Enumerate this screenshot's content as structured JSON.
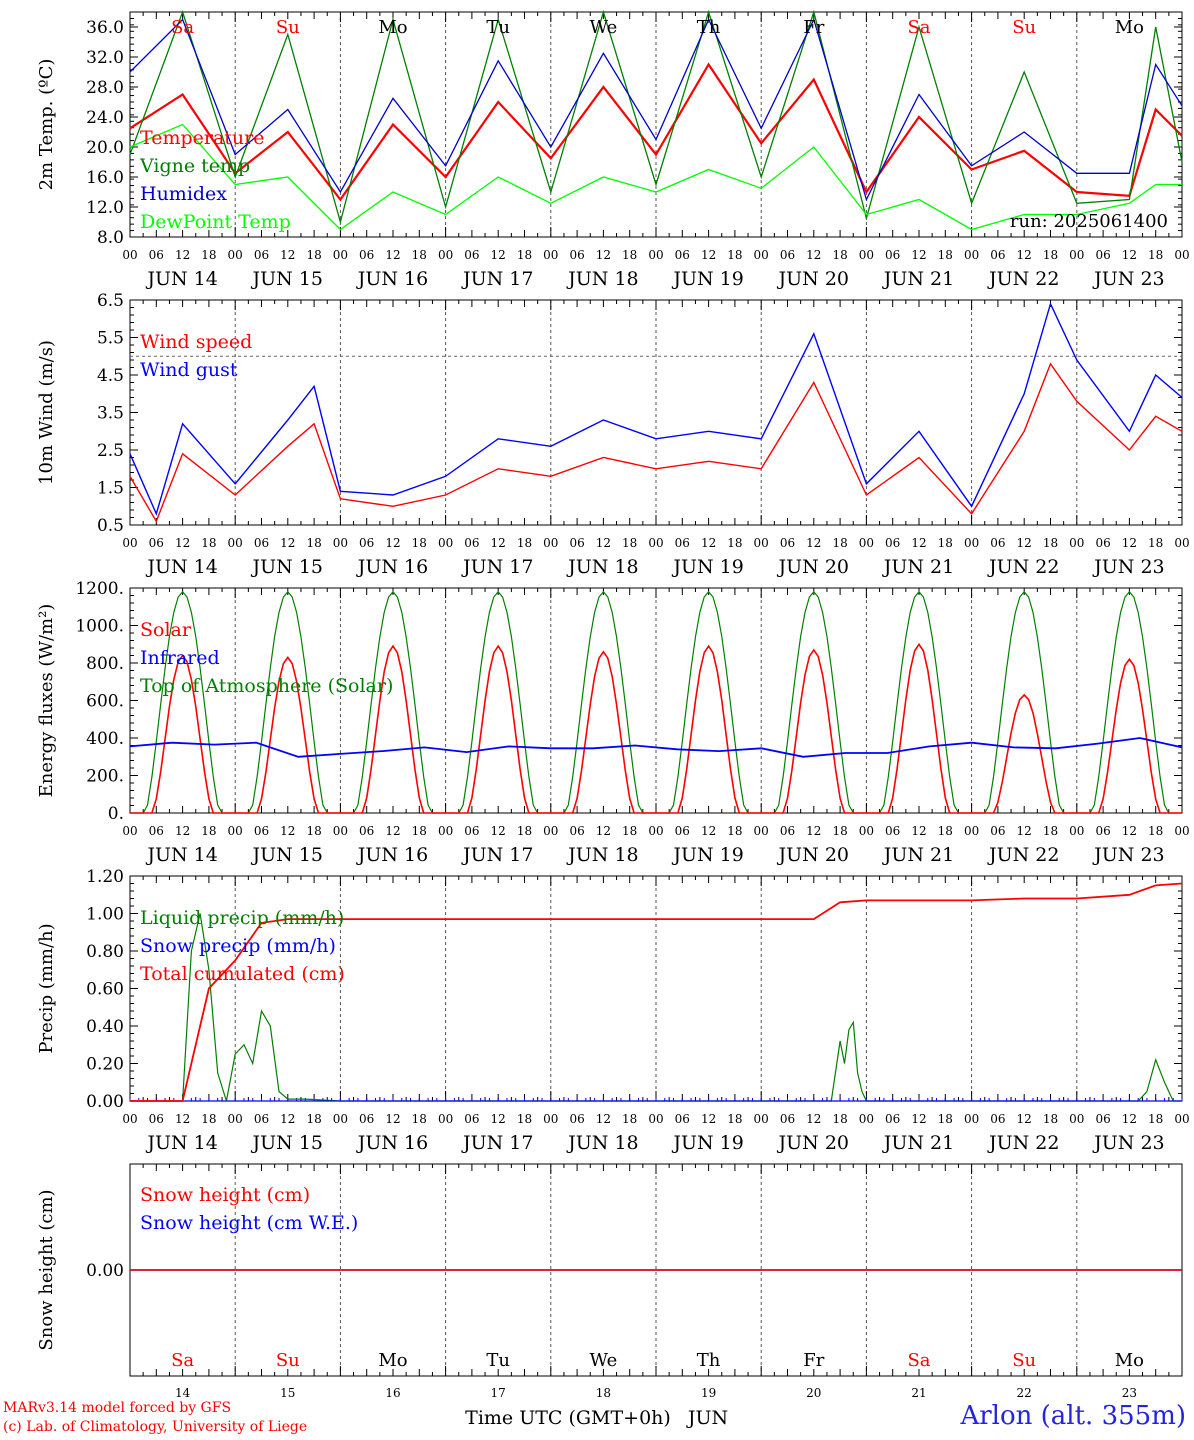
{
  "run_label": "run: 2025061400",
  "credits": [
    "MARv3.14 model forced by GFS",
    "(c) Lab. of Climatology, University of Liege"
  ],
  "location": "Arlon (alt. 355m)",
  "xlabel": "Time UTC (GMT+0h)",
  "month_label": "JUN",
  "day_labels": [
    "JUN 14",
    "JUN 15",
    "JUN 16",
    "JUN 17",
    "JUN 18",
    "JUN 19",
    "JUN 20",
    "JUN 21",
    "JUN 22",
    "JUN 23"
  ],
  "day_numbers": [
    "14",
    "15",
    "16",
    "17",
    "18",
    "19",
    "20",
    "21",
    "22",
    "23"
  ],
  "weekdays": [
    "Sa",
    "Su",
    "Mo",
    "Tu",
    "We",
    "Th",
    "Fr",
    "Sa",
    "Su",
    "Mo"
  ],
  "weekday_colors": [
    "#ff0000",
    "#ff0000",
    "#000000",
    "#000000",
    "#000000",
    "#000000",
    "#000000",
    "#ff0000",
    "#ff0000",
    "#000000"
  ],
  "hour_ticks": [
    "00",
    "06",
    "12",
    "18"
  ],
  "last_hour_tick": "00",
  "chart_data": [
    {
      "type": "line",
      "ylabel": "2m Temp. (ºC)",
      "ylim": [
        8,
        38
      ],
      "ytick_labels": [
        "8.0",
        "12.0",
        "16.0",
        "20.0",
        "24.0",
        "28.0",
        "32.0",
        "36.0"
      ],
      "x": [
        0,
        12,
        24,
        36,
        48,
        60,
        72,
        84,
        96,
        108,
        120,
        132,
        144,
        156,
        168,
        180,
        192,
        204,
        216,
        228,
        234,
        240
      ],
      "series": [
        {
          "name": "Temperature",
          "color": "#ff0000",
          "values": [
            22.5,
            27,
            16.5,
            22,
            13,
            23,
            16,
            26,
            18.5,
            28,
            19,
            31,
            20.5,
            29,
            14,
            24,
            17,
            19.5,
            14,
            13.5,
            25,
            21.5
          ]
        },
        {
          "name": "Vigne temp",
          "color": "#008000",
          "values": [
            19,
            38,
            16,
            35,
            10,
            37,
            12,
            37,
            14,
            38,
            15,
            38,
            16,
            38,
            10.5,
            36,
            12.5,
            30,
            12.5,
            13,
            36,
            18
          ]
        },
        {
          "name": "Humidex",
          "color": "#0000cc",
          "values": [
            30,
            37,
            19,
            25,
            14,
            26.5,
            17.5,
            31.5,
            20,
            32.5,
            21,
            37,
            22.5,
            37,
            13,
            27,
            17.5,
            22,
            16.5,
            16.5,
            31,
            25.5
          ]
        },
        {
          "name": "DewPoint Temp",
          "color": "#00ff00",
          "values": [
            20,
            23,
            15,
            16,
            9,
            14,
            11,
            16,
            12.5,
            16,
            14,
            17,
            14.5,
            20,
            11,
            13,
            9,
            11,
            11,
            12.5,
            15,
            15
          ]
        }
      ]
    },
    {
      "type": "line",
      "ylabel": "10m Wind (m/s)",
      "ylim": [
        0.5,
        6.5
      ],
      "ytick_labels": [
        "0.5",
        "1.5",
        "2.5",
        "3.5",
        "4.5",
        "5.5",
        "6.5"
      ],
      "reference_line": 5,
      "x": [
        0,
        6,
        12,
        24,
        36,
        42,
        48,
        60,
        72,
        84,
        96,
        108,
        120,
        132,
        144,
        156,
        168,
        180,
        192,
        204,
        210,
        216,
        228,
        234,
        240
      ],
      "series": [
        {
          "name": "Wind speed",
          "color": "#ff0000",
          "values": [
            1.8,
            0.6,
            2.4,
            1.3,
            2.6,
            3.2,
            1.2,
            1.0,
            1.3,
            2.0,
            1.8,
            2.3,
            2.0,
            2.2,
            2.0,
            4.3,
            1.3,
            2.3,
            0.8,
            3.0,
            4.8,
            3.8,
            2.5,
            3.4,
            3.0
          ]
        },
        {
          "name": "Wind gust",
          "color": "#0000ff",
          "values": [
            2.4,
            0.8,
            3.2,
            1.6,
            3.3,
            4.2,
            1.4,
            1.3,
            1.8,
            2.8,
            2.6,
            3.3,
            2.8,
            3.0,
            2.8,
            5.6,
            1.6,
            3.0,
            1.0,
            4.0,
            6.4,
            4.9,
            3.0,
            4.5,
            3.9
          ]
        }
      ]
    },
    {
      "type": "line",
      "ylabel": "Energy fluxes (W/m²)",
      "ylim": [
        0,
        1200
      ],
      "ytick_labels": [
        "0.",
        "200.",
        "400.",
        "600.",
        "800.",
        "1000.",
        "1200."
      ],
      "solar_day_peaks": [
        840,
        830,
        890,
        890,
        860,
        890,
        870,
        900,
        630,
        820
      ],
      "toa_peak": 1180,
      "infrared_values": [
        355,
        375,
        365,
        375,
        300,
        315,
        330,
        350,
        325,
        355,
        345,
        345,
        360,
        340,
        330,
        345,
        300,
        320,
        320,
        355,
        375,
        350,
        345,
        370,
        400,
        350
      ],
      "series": [
        {
          "name": "Solar",
          "color": "#ff0000"
        },
        {
          "name": "Infrared",
          "color": "#0000ff"
        },
        {
          "name": "Top of Atmosphere (Solar)",
          "color": "#008000"
        }
      ]
    },
    {
      "type": "line",
      "ylabel": "Precip (mm/h)",
      "ylim": [
        0,
        1.2
      ],
      "ytick_labels": [
        "0.00",
        "0.20",
        "0.40",
        "0.60",
        "0.80",
        "1.00",
        "1.20"
      ],
      "series": [
        {
          "name": "Liquid precip (mm/h)",
          "color": "#008000",
          "x": [
            0,
            12,
            14,
            16,
            18,
            20,
            22,
            24,
            26,
            28,
            30,
            32,
            34,
            36,
            40,
            48,
            160,
            162,
            163,
            164,
            165,
            166,
            167,
            168,
            230,
            232,
            234,
            236,
            238,
            240
          ],
          "values": [
            0,
            0,
            0.8,
            1.0,
            0.7,
            0.15,
            0,
            0.25,
            0.3,
            0.2,
            0.48,
            0.4,
            0.05,
            0.01,
            0.01,
            0,
            0,
            0.32,
            0.2,
            0.38,
            0.42,
            0.15,
            0.05,
            0,
            0,
            0.05,
            0.22,
            0.1,
            0,
            0
          ]
        },
        {
          "name": "Snow precip (mm/h)",
          "color": "#0000ff",
          "x": [
            0,
            240
          ],
          "values": [
            0,
            0
          ]
        },
        {
          "name": "Total cumulated (cm)",
          "color": "#ff0000",
          "x": [
            0,
            12,
            18,
            24,
            30,
            36,
            72,
            96,
            120,
            144,
            156,
            162,
            168,
            192,
            204,
            216,
            228,
            234,
            240
          ],
          "values": [
            0,
            0,
            0.6,
            0.75,
            0.95,
            0.97,
            0.97,
            0.97,
            0.97,
            0.97,
            0.97,
            1.06,
            1.07,
            1.07,
            1.08,
            1.08,
            1.1,
            1.15,
            1.16
          ]
        }
      ]
    },
    {
      "type": "line",
      "ylabel": "Snow height (cm)",
      "ytick_labels": [
        "0.00"
      ],
      "x": [
        0,
        240
      ],
      "series": [
        {
          "name": "Snow height (cm)",
          "color": "#ff0000",
          "values": [
            0,
            0
          ]
        },
        {
          "name": "Snow height (cm W.E.)",
          "color": "#0000ff",
          "values": [
            0,
            0
          ]
        }
      ]
    }
  ]
}
